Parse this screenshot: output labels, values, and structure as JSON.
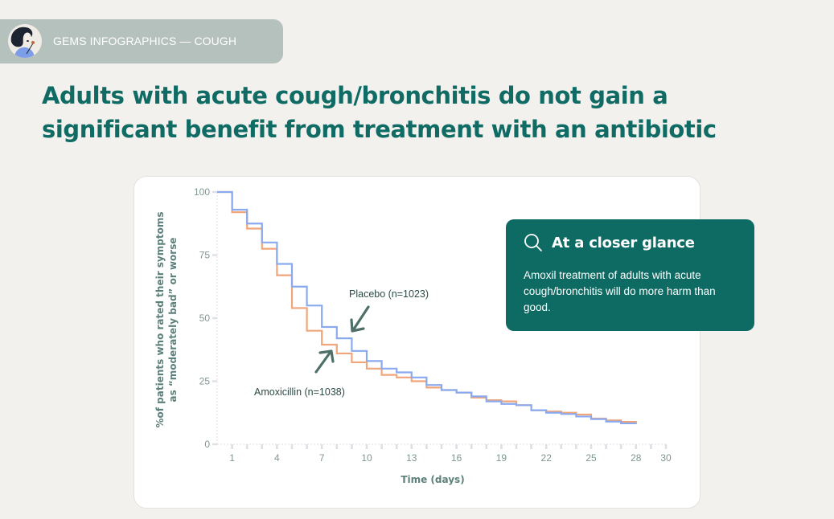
{
  "header": {
    "label": "GEMS INFOGRAPHICS — COUGH",
    "avatar": "illustrated-woman-avatar"
  },
  "page": {
    "title": "Adults with acute cough/bronchitis do not gain a significant benefit from treatment with an antibiotic"
  },
  "callout": {
    "icon": "search-icon",
    "title": "At a closer glance",
    "body": "Amoxil treatment of adults with acute cough/bronchitis will do more harm than good."
  },
  "colors": {
    "background": "#f2f1ed",
    "header_pill": "#b5c1bd",
    "title": "#0f6b63",
    "callout_bg": "#0d6b63",
    "placebo": "#8aaaf0",
    "amoxicillin": "#f0a57a",
    "arrow": "#4f7068"
  },
  "chart_data": {
    "type": "line",
    "subtype": "step",
    "title": "",
    "xlabel": "Time (days)",
    "ylabel": "%of patients who rated their symptoms as “moderately bad” or worse",
    "xlim": [
      0,
      30
    ],
    "ylim": [
      0,
      100
    ],
    "x_ticks": [
      1,
      4,
      7,
      10,
      13,
      16,
      19,
      22,
      25,
      28,
      30
    ],
    "y_ticks": [
      0,
      25,
      50,
      75,
      100
    ],
    "grid": false,
    "legend": "inline annotations",
    "x": [
      0,
      1,
      2,
      3,
      4,
      5,
      6,
      7,
      8,
      9,
      10,
      11,
      12,
      13,
      14,
      15,
      16,
      17,
      18,
      19,
      20,
      21,
      22,
      23,
      24,
      25,
      26,
      27,
      28
    ],
    "series": [
      {
        "name": "Placebo (n=1023)",
        "color": "#8aaaf0",
        "values": [
          100,
          93,
          87.5,
          80,
          71.5,
          62.5,
          55,
          46.5,
          42,
          37,
          33,
          30,
          28.5,
          26.5,
          23.5,
          21.5,
          20.5,
          19,
          17,
          16,
          15.5,
          13.5,
          12.5,
          12,
          11,
          10,
          9,
          8.3,
          8
        ]
      },
      {
        "name": "Amoxicillin (n=1038)",
        "color": "#f0a57a",
        "values": [
          100,
          92,
          85.5,
          77.5,
          67,
          54,
          45,
          39.5,
          36,
          32.5,
          30,
          27.5,
          26.5,
          25,
          22.5,
          21.5,
          20.5,
          18.5,
          17.5,
          17,
          15.5,
          13.5,
          13,
          12.5,
          11.8,
          10.2,
          9.5,
          8.9,
          8.6
        ]
      }
    ],
    "annotations": [
      {
        "text": "Placebo (n=1023)",
        "arrow": "points down-left to placebo curve near day 8"
      },
      {
        "text": "Amoxicillin (n=1038)",
        "arrow": "points up-right to amoxicillin curve near day 7"
      }
    ]
  }
}
